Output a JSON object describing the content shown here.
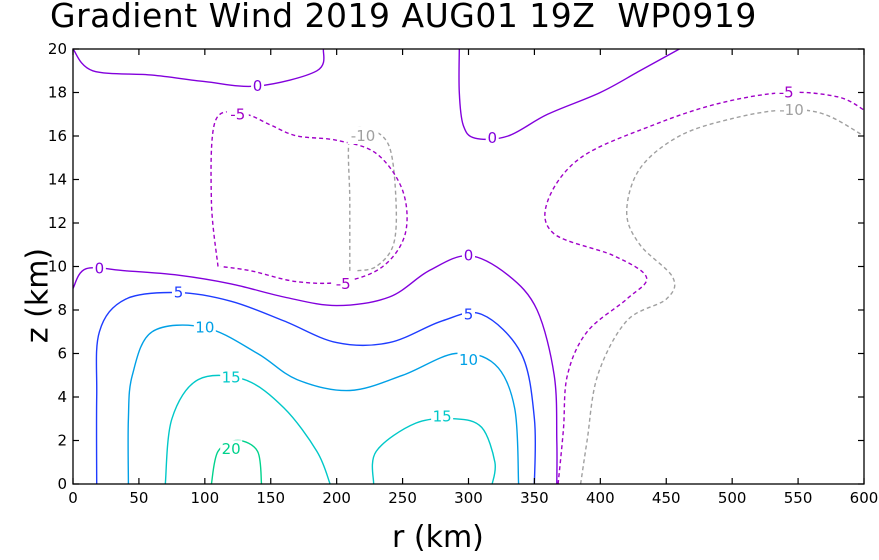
{
  "chart_data": {
    "type": "contour",
    "title": "Gradient Wind 2019 AUG01 19Z  WP0919",
    "xlabel": "r (km)",
    "ylabel": "z (km)",
    "xlim": [
      0,
      600
    ],
    "ylim": [
      0,
      20
    ],
    "xticks": [
      0,
      50,
      100,
      150,
      200,
      250,
      300,
      350,
      400,
      450,
      500,
      550,
      600
    ],
    "yticks": [
      0,
      2,
      4,
      6,
      8,
      10,
      12,
      14,
      16,
      18,
      20
    ],
    "colors": {
      "-10": "#a0a0a0",
      "-5": "#a000c8",
      "0": "#8200dc",
      "5": "#1e3cff",
      "10": "#00a0e6",
      "15": "#00c8c8",
      "20": "#00d28c"
    },
    "contours": [
      {
        "level": "-10",
        "dashed": true,
        "points": [
          [
            210,
            9.8
          ],
          [
            210,
            13.0
          ],
          [
            210,
            16.0
          ],
          [
            225,
            16.3
          ],
          [
            240,
            15.5
          ],
          [
            245,
            13.0
          ],
          [
            243,
            11.0
          ],
          [
            230,
            10.0
          ],
          [
            215,
            9.8
          ]
        ]
      },
      {
        "level": "-10",
        "dashed": true,
        "points": [
          [
            385,
            0
          ],
          [
            390,
            2.0
          ],
          [
            398,
            5.0
          ],
          [
            420,
            7.5
          ],
          [
            450,
            8.5
          ],
          [
            455,
            9.5
          ],
          [
            430,
            11.0
          ],
          [
            420,
            12.5
          ],
          [
            430,
            14.5
          ],
          [
            460,
            16.0
          ],
          [
            500,
            16.8
          ],
          [
            540,
            17.2
          ],
          [
            570,
            17.0
          ],
          [
            600,
            16.0
          ]
        ]
      },
      {
        "level": "-5",
        "dashed": true,
        "points": [
          [
            110,
            10.0
          ],
          [
            105,
            13.0
          ],
          [
            108,
            16.7
          ],
          [
            130,
            17.0
          ],
          [
            150,
            16.5
          ],
          [
            170,
            16.0
          ],
          [
            200,
            15.8
          ],
          [
            230,
            15.2
          ],
          [
            250,
            13.5
          ],
          [
            252,
            11.5
          ],
          [
            235,
            10.0
          ],
          [
            205,
            9.3
          ],
          [
            170,
            9.3
          ],
          [
            135,
            9.8
          ],
          [
            112,
            10.0
          ]
        ]
      },
      {
        "level": "-5",
        "dashed": true,
        "points": [
          [
            368,
            0
          ],
          [
            372,
            2.5
          ],
          [
            375,
            5.0
          ],
          [
            390,
            7.0
          ],
          [
            420,
            8.5
          ],
          [
            435,
            9.5
          ],
          [
            410,
            10.5
          ],
          [
            365,
            11.5
          ],
          [
            360,
            13.0
          ],
          [
            385,
            15.0
          ],
          [
            440,
            16.5
          ],
          [
            490,
            17.5
          ],
          [
            540,
            18.0
          ],
          [
            580,
            17.8
          ],
          [
            600,
            17.2
          ]
        ]
      },
      {
        "level": "0",
        "dashed": false,
        "points": [
          [
            0,
            20
          ],
          [
            15,
            19.0
          ],
          [
            60,
            18.8
          ],
          [
            100,
            18.5
          ],
          [
            140,
            18.3
          ],
          [
            185,
            19.0
          ],
          [
            190,
            20
          ]
        ]
      },
      {
        "level": "0",
        "dashed": false,
        "points": [
          [
            293,
            20
          ],
          [
            293,
            18.0
          ],
          [
            296,
            16.5
          ],
          [
            305,
            15.9
          ],
          [
            330,
            16.0
          ],
          [
            360,
            17.0
          ],
          [
            400,
            18.0
          ],
          [
            430,
            19.0
          ],
          [
            460,
            20
          ]
        ]
      },
      {
        "level": "0",
        "dashed": false,
        "points": [
          [
            0,
            9.0
          ],
          [
            10,
            9.9
          ],
          [
            40,
            9.8
          ],
          [
            80,
            9.6
          ],
          [
            120,
            9.2
          ],
          [
            160,
            8.6
          ],
          [
            200,
            8.2
          ],
          [
            240,
            8.6
          ],
          [
            270,
            9.8
          ],
          [
            300,
            10.5
          ],
          [
            330,
            9.6
          ],
          [
            352,
            8.0
          ],
          [
            365,
            5.0
          ],
          [
            367,
            2.0
          ],
          [
            367,
            0
          ]
        ]
      },
      {
        "level": "5",
        "dashed": false,
        "points": [
          [
            18,
            0
          ],
          [
            18,
            4.0
          ],
          [
            20,
            7.0
          ],
          [
            40,
            8.5
          ],
          [
            80,
            8.8
          ],
          [
            120,
            8.4
          ],
          [
            160,
            7.5
          ],
          [
            200,
            6.5
          ],
          [
            240,
            6.5
          ],
          [
            280,
            7.5
          ],
          [
            310,
            7.8
          ],
          [
            340,
            6.0
          ],
          [
            350,
            3.0
          ],
          [
            350,
            0
          ]
        ]
      },
      {
        "level": "10",
        "dashed": false,
        "points": [
          [
            42,
            0
          ],
          [
            42,
            3.0
          ],
          [
            45,
            5.0
          ],
          [
            60,
            7.0
          ],
          [
            100,
            7.2
          ],
          [
            140,
            6.0
          ],
          [
            170,
            4.8
          ],
          [
            210,
            4.3
          ],
          [
            250,
            5.0
          ],
          [
            290,
            6.0
          ],
          [
            320,
            5.5
          ],
          [
            335,
            3.5
          ],
          [
            338,
            0
          ]
        ]
      },
      {
        "level": "15",
        "dashed": false,
        "points": [
          [
            70,
            0
          ],
          [
            75,
            3.0
          ],
          [
            95,
            4.8
          ],
          [
            130,
            4.8
          ],
          [
            160,
            3.5
          ],
          [
            185,
            1.5
          ],
          [
            195,
            0
          ]
        ]
      },
      {
        "level": "15",
        "dashed": false,
        "points": [
          [
            228,
            0
          ],
          [
            230,
            1.5
          ],
          [
            260,
            2.8
          ],
          [
            290,
            3.0
          ],
          [
            310,
            2.6
          ],
          [
            320,
            1.0
          ],
          [
            318,
            0
          ]
        ]
      },
      {
        "level": "20",
        "dashed": false,
        "points": [
          [
            105,
            0
          ],
          [
            110,
            1.5
          ],
          [
            125,
            2.0
          ],
          [
            140,
            1.5
          ],
          [
            143,
            0
          ]
        ]
      }
    ],
    "contour_labels": [
      {
        "level": "0",
        "text": "0",
        "x": 140,
        "y": 18.3
      },
      {
        "level": "0",
        "text": "0",
        "x": 318,
        "y": 15.9
      },
      {
        "level": "0",
        "text": "0",
        "x": 20,
        "y": 9.9
      },
      {
        "level": "0",
        "text": "0",
        "x": 300,
        "y": 10.5
      },
      {
        "level": "-5",
        "text": "-5",
        "x": 125,
        "y": 17.0
      },
      {
        "level": "-5",
        "text": "-5",
        "x": 205,
        "y": 9.2
      },
      {
        "level": "-5",
        "text": "-5",
        "x": 541,
        "y": 18.0
      },
      {
        "level": "-10",
        "text": "-10",
        "x": 220,
        "y": 16.0
      },
      {
        "level": "-10",
        "text": "-10",
        "x": 545,
        "y": 17.2
      },
      {
        "level": "5",
        "text": "5",
        "x": 80,
        "y": 8.8
      },
      {
        "level": "5",
        "text": "5",
        "x": 300,
        "y": 7.8
      },
      {
        "level": "10",
        "text": "10",
        "x": 100,
        "y": 7.2
      },
      {
        "level": "10",
        "text": "10",
        "x": 300,
        "y": 5.7
      },
      {
        "level": "15",
        "text": "15",
        "x": 120,
        "y": 4.9
      },
      {
        "level": "15",
        "text": "15",
        "x": 280,
        "y": 3.1
      },
      {
        "level": "20",
        "text": "20",
        "x": 120,
        "y": 1.6
      }
    ]
  }
}
